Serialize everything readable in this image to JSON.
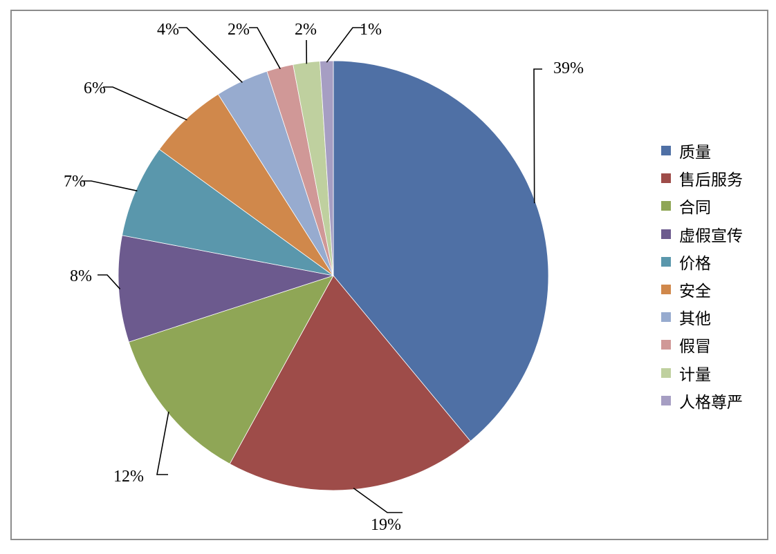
{
  "chart_data": {
    "type": "pie",
    "title": "",
    "legend_position": "right",
    "categories": [
      "质量",
      "售后服务",
      "合同",
      "虚假宣传",
      "价格",
      "安全",
      "其他",
      "假冒",
      "计量",
      "人格尊严"
    ],
    "values": [
      39,
      19,
      12,
      8,
      7,
      6,
      4,
      2,
      2,
      1
    ],
    "data_labels": [
      "39%",
      "19%",
      "12%",
      "8%",
      "7%",
      "6%",
      "4%",
      "2%",
      "2%",
      "1%"
    ],
    "colors": [
      "#4F70A5",
      "#9E4C49",
      "#8FA656",
      "#6C5A8E",
      "#5A97AC",
      "#D0884B",
      "#97ABCF",
      "#D09897",
      "#BFD09F",
      "#A69EC3"
    ]
  }
}
